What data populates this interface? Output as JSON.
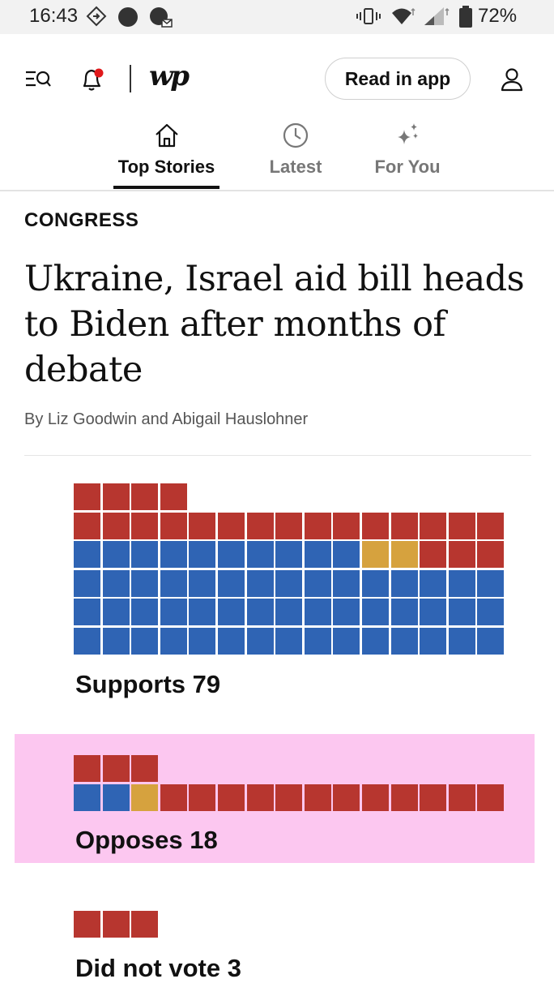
{
  "status_bar": {
    "time": "16:43",
    "battery": "72%",
    "icons": [
      "drive-mode-icon",
      "dot-icon",
      "message-icon",
      "vibrate-icon",
      "wifi-icon",
      "signal-icon",
      "battery-icon"
    ]
  },
  "header": {
    "menu_icon": "menu-search-icon",
    "bell_icon": "notification-bell-icon",
    "logo": "wp",
    "read_in_app": "Read in app",
    "account_icon": "account-icon"
  },
  "tabs": [
    {
      "label": "Top Stories",
      "icon": "home-icon",
      "active": true
    },
    {
      "label": "Latest",
      "icon": "clock-icon",
      "active": false
    },
    {
      "label": "For You",
      "icon": "sparkle-icon",
      "active": false
    }
  ],
  "article": {
    "kicker": "CONGRESS",
    "headline": "Ukraine, Israel aid bill heads to Biden after months of debate",
    "byline": "By Liz Goodwin and Abigail Hauslohner"
  },
  "colors": {
    "republican": "#b7362f",
    "democrat": "#2f64b4",
    "independent": "#d6a23e",
    "highlight": "#fcc7f0"
  },
  "graphic": {
    "groups": [
      {
        "label": "Supports 79",
        "total": 79,
        "republican": 22,
        "independent": 2,
        "democrat": 55,
        "highlighted": false
      },
      {
        "label": "Opposes 18",
        "total": 18,
        "republican": 15,
        "independent": 1,
        "democrat": 2,
        "highlighted": true
      },
      {
        "label": "Did not vote 3",
        "total": 3,
        "republican": 3,
        "independent": 0,
        "democrat": 0,
        "highlighted": false
      }
    ]
  }
}
